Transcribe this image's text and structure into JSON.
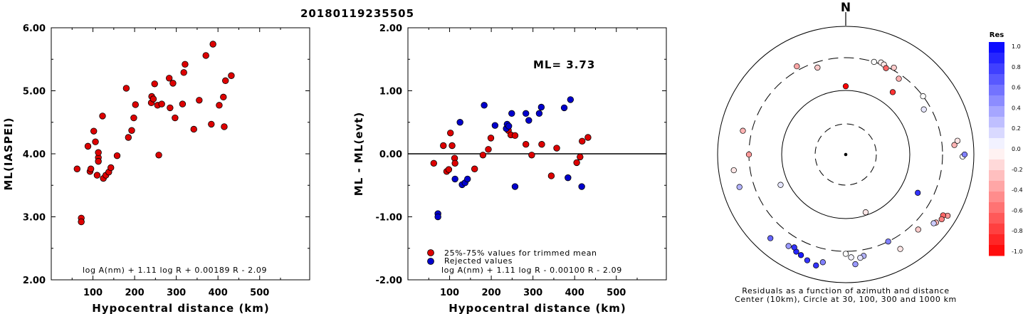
{
  "title": "20180119235505",
  "chart_data": [
    {
      "type": "scatter",
      "ylabel": "ML(IASPEI)",
      "xlabel": "Hypocentral distance (km)",
      "xlim": [
        0,
        620
      ],
      "ylim": [
        2.0,
        6.0
      ],
      "xticks": [
        "100",
        "200",
        "300",
        "400",
        "500"
      ],
      "yticks": [
        "2.00",
        "3.00",
        "4.00",
        "5.00",
        "6.00"
      ],
      "equation": "log A(nm) + 1.11 log R + 0.00189 R - 2.09",
      "points_color": "#dd0000",
      "points": [
        [
          62,
          3.76
        ],
        [
          72,
          2.98
        ],
        [
          72,
          2.92
        ],
        [
          88,
          4.12
        ],
        [
          93,
          3.72
        ],
        [
          95,
          3.76
        ],
        [
          102,
          4.36
        ],
        [
          106,
          4.19
        ],
        [
          110,
          3.66
        ],
        [
          113,
          3.94
        ],
        [
          113,
          4.02
        ],
        [
          113,
          3.88
        ],
        [
          123,
          4.6
        ],
        [
          125,
          3.61
        ],
        [
          131,
          3.66
        ],
        [
          138,
          3.71
        ],
        [
          143,
          3.78
        ],
        [
          158,
          3.97
        ],
        [
          180,
          5.04
        ],
        [
          185,
          4.26
        ],
        [
          193,
          4.37
        ],
        [
          198,
          4.57
        ],
        [
          202,
          4.78
        ],
        [
          240,
          4.81
        ],
        [
          241,
          4.91
        ],
        [
          245,
          4.87
        ],
        [
          248,
          5.11
        ],
        [
          255,
          4.77
        ],
        [
          258,
          3.98
        ],
        [
          265,
          4.79
        ],
        [
          283,
          5.2
        ],
        [
          285,
          4.73
        ],
        [
          292,
          5.12
        ],
        [
          297,
          4.57
        ],
        [
          315,
          4.79
        ],
        [
          318,
          5.29
        ],
        [
          321,
          5.42
        ],
        [
          342,
          4.39
        ],
        [
          355,
          4.85
        ],
        [
          371,
          5.56
        ],
        [
          384,
          4.47
        ],
        [
          388,
          5.74
        ],
        [
          403,
          4.77
        ],
        [
          413,
          4.9
        ],
        [
          415,
          4.43
        ],
        [
          418,
          5.16
        ],
        [
          432,
          5.24
        ]
      ]
    },
    {
      "type": "scatter",
      "ylabel": "ML - ML(evt)",
      "xlabel": "Hypocentral distance (km)",
      "xlim": [
        0,
        620
      ],
      "ylim": [
        -2.0,
        2.0
      ],
      "xticks": [
        "100",
        "200",
        "300",
        "400",
        "500"
      ],
      "yticks": [
        "-2.00",
        "-1.00",
        "0.00",
        "1.00",
        "2.00"
      ],
      "annotation": "ML= 3.73",
      "equation": "log A(nm) + 1.11 log R - 0.00100 R - 2.09",
      "legend": [
        {
          "label": "25%-75% values for trimmed mean",
          "color": "#dd0000"
        },
        {
          "label": "Rejected values",
          "color": "#0000cc"
        }
      ],
      "series": [
        {
          "name": "25%-75% values for trimmed mean",
          "color": "#dd0000",
          "points": [
            [
              62,
              -0.15
            ],
            [
              85,
              0.13
            ],
            [
              93,
              -0.28
            ],
            [
              98,
              -0.25
            ],
            [
              102,
              0.33
            ],
            [
              106,
              0.13
            ],
            [
              112,
              -0.07
            ],
            [
              113,
              -0.15
            ],
            [
              160,
              -0.24
            ],
            [
              180,
              -0.02
            ],
            [
              193,
              0.07
            ],
            [
              199,
              0.25
            ],
            [
              241,
              0.37
            ],
            [
              247,
              0.3
            ],
            [
              257,
              0.29
            ],
            [
              283,
              0.15
            ],
            [
              297,
              -0.02
            ],
            [
              321,
              0.15
            ],
            [
              344,
              -0.35
            ],
            [
              357,
              0.09
            ],
            [
              405,
              -0.14
            ],
            [
              413,
              -0.05
            ],
            [
              418,
              0.2
            ],
            [
              432,
              0.26
            ]
          ]
        },
        {
          "name": "Rejected values",
          "color": "#0000cc",
          "points": [
            [
              72,
              -0.95
            ],
            [
              72,
              -1.0
            ],
            [
              113,
              -0.4
            ],
            [
              125,
              0.5
            ],
            [
              130,
              -0.49
            ],
            [
              137,
              -0.46
            ],
            [
              143,
              -0.4
            ],
            [
              183,
              0.77
            ],
            [
              209,
              0.45
            ],
            [
              236,
              0.4
            ],
            [
              238,
              0.47
            ],
            [
              242,
              0.44
            ],
            [
              249,
              0.64
            ],
            [
              257,
              -0.52
            ],
            [
              283,
              0.64
            ],
            [
              290,
              0.53
            ],
            [
              315,
              0.64
            ],
            [
              320,
              0.74
            ],
            [
              375,
              0.73
            ],
            [
              384,
              -0.38
            ],
            [
              390,
              0.86
            ],
            [
              417,
              -0.52
            ]
          ]
        }
      ]
    },
    {
      "type": "scatter",
      "subtype": "polar",
      "north_label": "N",
      "caption_line1": "Residuals as a function of azimuth and distance",
      "caption_line2": "Center (10km), Circle at 30, 100, 300 and 1000 km",
      "colorbar": {
        "title": "Res",
        "ticks": [
          "1.0",
          "0.8",
          "0.6",
          "0.4",
          "0.2",
          "0.0",
          "-0.2",
          "-0.4",
          "-0.6",
          "-0.8",
          "-1.0"
        ],
        "top_color": "#0000ff",
        "bottom_color": "#ff0000"
      },
      "points": [
        {
          "az": 331,
          "dist": 350,
          "res": -0.35
        },
        {
          "az": 342,
          "dist": 250,
          "res": -0.2
        },
        {
          "az": 0,
          "dist": 115,
          "res": -1.0
        },
        {
          "az": 17,
          "dist": 300,
          "res": 0.0
        },
        {
          "az": 21,
          "dist": 320,
          "res": -0.05
        },
        {
          "az": 23,
          "dist": 310,
          "res": -0.1
        },
        {
          "az": 25,
          "dist": 285,
          "res": -0.6
        },
        {
          "az": 29,
          "dist": 330,
          "res": -0.2
        },
        {
          "az": 37,
          "dist": 160,
          "res": -0.8
        },
        {
          "az": 35,
          "dist": 260,
          "res": -0.3
        },
        {
          "az": 53,
          "dist": 300,
          "res": 0.0
        },
        {
          "az": 60,
          "dist": 240,
          "res": 0.1
        },
        {
          "az": 85,
          "dist": 480,
          "res": -0.3
        },
        {
          "az": 83,
          "dist": 550,
          "res": -0.1
        },
        {
          "az": 91,
          "dist": 650,
          "res": 0.0
        },
        {
          "az": 90,
          "dist": 700,
          "res": 0.5
        },
        {
          "az": 118,
          "dist": 180,
          "res": 0.8
        },
        {
          "az": 121,
          "dist": 700,
          "res": -0.4
        },
        {
          "az": 122,
          "dist": 600,
          "res": -0.6
        },
        {
          "az": 124,
          "dist": 620,
          "res": -0.5
        },
        {
          "az": 127,
          "dist": 560,
          "res": -0.3
        },
        {
          "az": 128,
          "dist": 530,
          "res": 0.2
        },
        {
          "az": 136,
          "dist": 400,
          "res": -0.2
        },
        {
          "az": 150,
          "dist": 480,
          "res": -0.1
        },
        {
          "az": 154,
          "dist": 300,
          "res": 0.5
        },
        {
          "az": 161,
          "dist": 90,
          "res": -0.1
        },
        {
          "az": 170,
          "dist": 380,
          "res": 0.3
        },
        {
          "az": 172,
          "dist": 400,
          "res": 0.1
        },
        {
          "az": 175,
          "dist": 500,
          "res": 0.4
        },
        {
          "az": 177,
          "dist": 380,
          "res": 0.05
        },
        {
          "az": 180,
          "dist": 330,
          "res": 0.0
        },
        {
          "az": 192,
          "dist": 500,
          "res": 0.5
        },
        {
          "az": 195,
          "dist": 600,
          "res": 0.8
        },
        {
          "az": 200,
          "dist": 550,
          "res": 0.8
        },
        {
          "az": 204,
          "dist": 500,
          "res": 0.9
        },
        {
          "az": 207,
          "dist": 480,
          "res": 0.85
        },
        {
          "az": 209,
          "dist": 430,
          "res": 0.8
        },
        {
          "az": 212,
          "dist": 460,
          "res": 0.4
        },
        {
          "az": 222,
          "dist": 550,
          "res": 0.6
        },
        {
          "az": 245,
          "dist": 130,
          "res": 0.1
        },
        {
          "az": 253,
          "dist": 520,
          "res": 0.3
        },
        {
          "az": 262,
          "dist": 560,
          "res": -0.1
        },
        {
          "az": 270,
          "dist": 300,
          "res": -0.4
        },
        {
          "az": 283,
          "dist": 420,
          "res": -0.3
        }
      ]
    }
  ]
}
